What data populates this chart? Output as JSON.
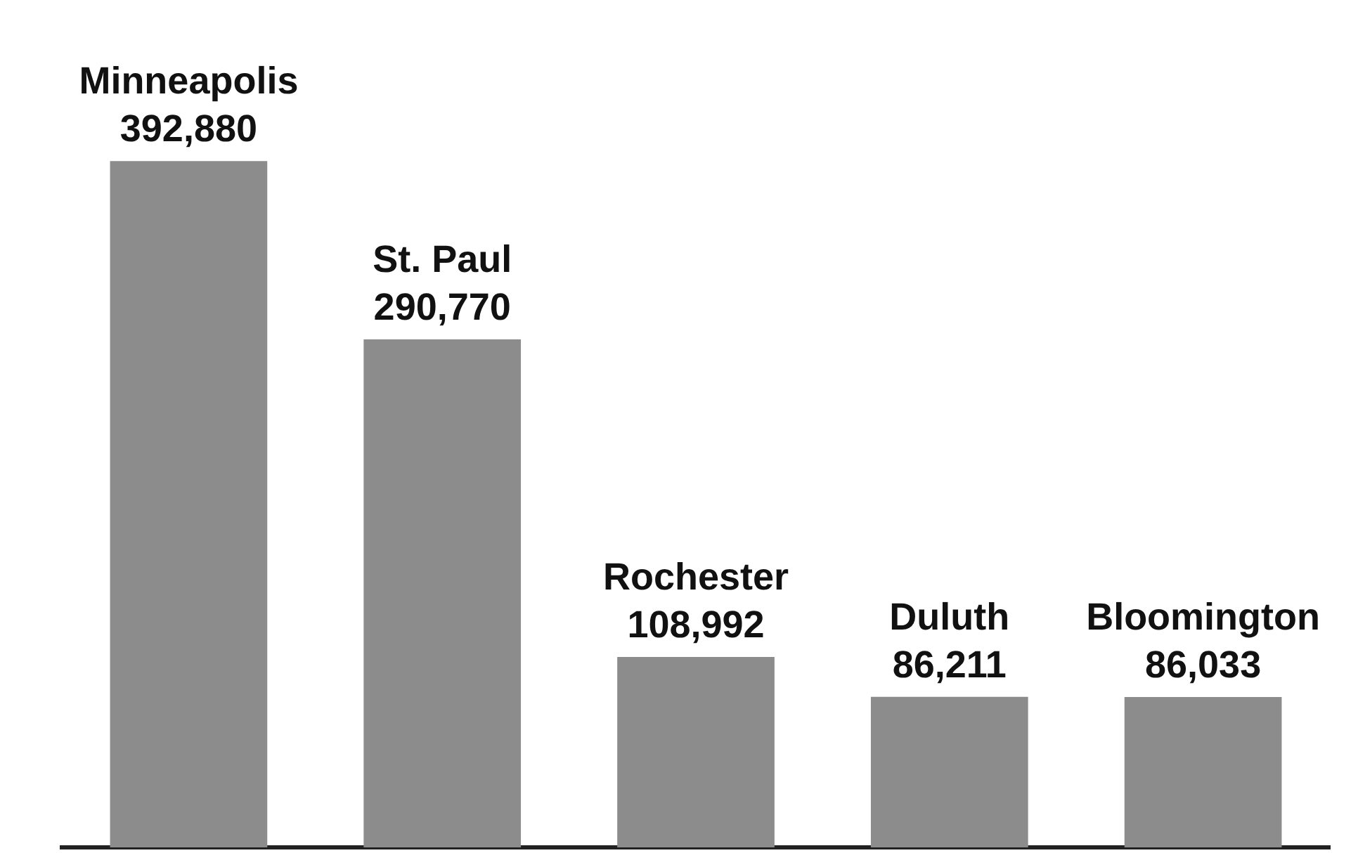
{
  "chart_data": {
    "type": "bar",
    "categories": [
      "Minneapolis",
      "St. Paul",
      "Rochester",
      "Duluth",
      "Bloomington"
    ],
    "values": [
      392880,
      290770,
      108992,
      86211,
      86033
    ],
    "value_labels": [
      "392,880",
      "290,770",
      "108,992",
      "86,211",
      "86,033"
    ],
    "color": "#8c8c8c"
  }
}
